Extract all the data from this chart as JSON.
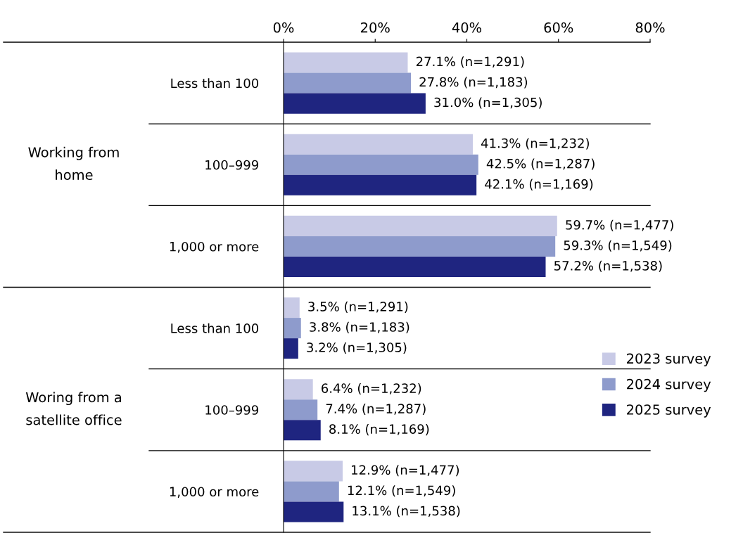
{
  "chart_data": {
    "type": "bar",
    "orientation": "horizontal",
    "categories": [
      "Less than 100",
      "100–999",
      "1,000 or more",
      "Less than 100",
      "100–999",
      "1,000 or more"
    ],
    "annotations": [
      "Working from home",
      "Woring from a satellite office"
    ],
    "xlim": [
      0,
      80
    ],
    "xticks": [
      {
        "value": 0,
        "label": "0%"
      },
      {
        "value": 20,
        "label": "20%"
      },
      {
        "value": 40,
        "label": "40%"
      },
      {
        "value": 60,
        "label": "60%"
      },
      {
        "value": 80,
        "label": "80%"
      }
    ],
    "grid": false,
    "legend": "right",
    "series": [
      {
        "name": "2023 survey",
        "color": "#c8cae6",
        "values": [
          27.1,
          41.3,
          59.7,
          3.5,
          6.4,
          12.9
        ],
        "value_labels": [
          "27.1% (n=1,291)",
          "41.3% (n=1,232)",
          "59.7% (n=1,477)",
          "3.5% (n=1,291)",
          "6.4% (n=1,232)",
          "12.9% (n=1,477)"
        ]
      },
      {
        "name": "2024 survey",
        "color": "#8e9bcc",
        "values": [
          27.8,
          42.5,
          59.3,
          3.8,
          7.4,
          12.1
        ],
        "value_labels": [
          "27.8% (n=1,183)",
          "42.5% (n=1,287)",
          "59.3% (n=1,549)",
          "3.8% (n=1,183)",
          "7.4% (n=1,287)",
          "12.1% (n=1,549)"
        ]
      },
      {
        "name": "2025 survey",
        "color": "#1f2580",
        "values": [
          31.0,
          42.1,
          57.2,
          3.2,
          8.1,
          13.1
        ],
        "value_labels": [
          "31.0% (n=1,305)",
          "42.1% (n=1,169)",
          "57.2% (n=1,538)",
          "3.2% (n=1,305)",
          "8.1% (n=1,169)",
          "13.1% (n=1,538)"
        ]
      }
    ]
  }
}
